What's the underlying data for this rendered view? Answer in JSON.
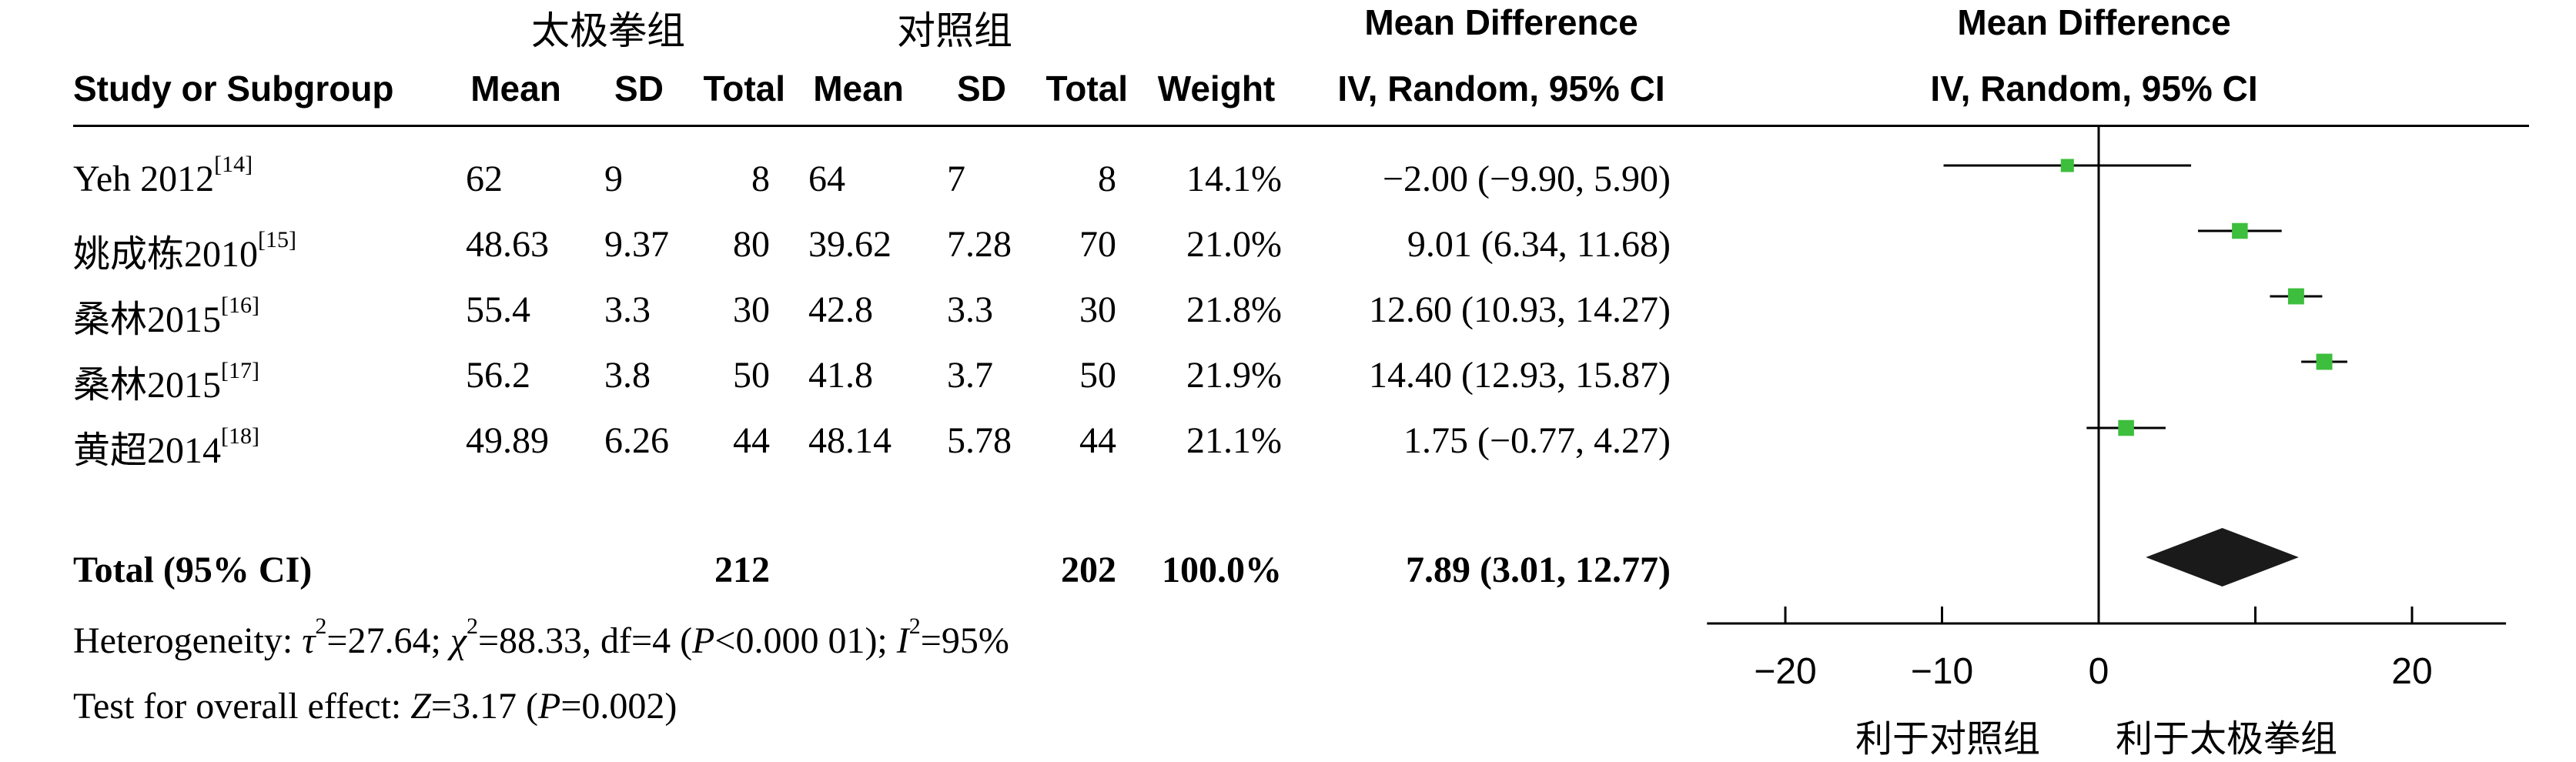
{
  "header": {
    "group_exp": "太极拳组",
    "group_ctrl": "对照组",
    "study_col": "Study or Subgroup",
    "mean": "Mean",
    "sd": "SD",
    "total": "Total",
    "weight": "Weight",
    "md_title": "Mean Difference",
    "md_method": "IV, Random, 95% CI",
    "plot_title": "Mean Difference",
    "plot_method": "IV, Random, 95% CI"
  },
  "studies": [
    {
      "name": "Yeh 2012",
      "ref": "[14]",
      "mean_e": "62",
      "sd_e": "9",
      "n_e": "8",
      "mean_c": "64",
      "sd_c": "7",
      "n_c": "8",
      "weight": "14.1%",
      "ci_text": "−2.00 (−9.90, 5.90)"
    },
    {
      "name": "姚成栋2010",
      "ref": "[15]",
      "mean_e": "48.63",
      "sd_e": "9.37",
      "n_e": "80",
      "mean_c": "39.62",
      "sd_c": "7.28",
      "n_c": "70",
      "weight": "21.0%",
      "ci_text": "9.01 (6.34, 11.68)"
    },
    {
      "name": "桑林2015",
      "ref": "[16]",
      "mean_e": "55.4",
      "sd_e": "3.3",
      "n_e": "30",
      "mean_c": "42.8",
      "sd_c": "3.3",
      "n_c": "30",
      "weight": "21.8%",
      "ci_text": "12.60 (10.93, 14.27)"
    },
    {
      "name": "桑林2015",
      "ref": "[17]",
      "mean_e": "56.2",
      "sd_e": "3.8",
      "n_e": "50",
      "mean_c": "41.8",
      "sd_c": "3.7",
      "n_c": "50",
      "weight": "21.9%",
      "ci_text": "14.40 (12.93, 15.87)"
    },
    {
      "name": "黄超2014",
      "ref": "[18]",
      "mean_e": "49.89",
      "sd_e": "6.26",
      "n_e": "44",
      "mean_c": "48.14",
      "sd_c": "5.78",
      "n_c": "44",
      "weight": "21.1%",
      "ci_text": "1.75 (−0.77, 4.27)"
    }
  ],
  "total_row": {
    "label": "Total (95% CI)",
    "n_e": "212",
    "n_c": "202",
    "weight": "100.0%",
    "ci_text": "7.89 (3.01, 12.77)"
  },
  "footer": {
    "heterogeneity": "Heterogeneity: τ²=27.64; χ²=88.33, df=4 (P<0.000 01); I²=95%",
    "overall_effect": "Test for overall effect: Z=3.17 (P=0.002)",
    "favors_ctrl": "利于对照组",
    "favors_exp": "利于太极拳组"
  },
  "colors": {
    "marker": "#3dbe3d",
    "diamond": "#1a1a1a",
    "line": "#000000"
  },
  "chart_data": {
    "type": "forest",
    "xlim": [
      -25,
      26
    ],
    "x_ticks": [
      -20,
      -10,
      0,
      20
    ],
    "x_tick_labels": [
      "−20",
      "−10",
      "0",
      "20"
    ],
    "series": [
      {
        "study": "Yeh 2012[14]",
        "md": -2.0,
        "lo": -9.9,
        "hi": 5.9,
        "weight": 14.1
      },
      {
        "study": "姚成栋2010[15]",
        "md": 9.01,
        "lo": 6.34,
        "hi": 11.68,
        "weight": 21.0
      },
      {
        "study": "桑林2015[16]",
        "md": 12.6,
        "lo": 10.93,
        "hi": 14.27,
        "weight": 21.8
      },
      {
        "study": "桑林2015[17]",
        "md": 14.4,
        "lo": 12.93,
        "hi": 15.87,
        "weight": 21.9
      },
      {
        "study": "黄超2014[18]",
        "md": 1.75,
        "lo": -0.77,
        "hi": 4.27,
        "weight": 21.1
      }
    ],
    "pooled": {
      "md": 7.89,
      "lo": 3.01,
      "hi": 12.77
    }
  }
}
